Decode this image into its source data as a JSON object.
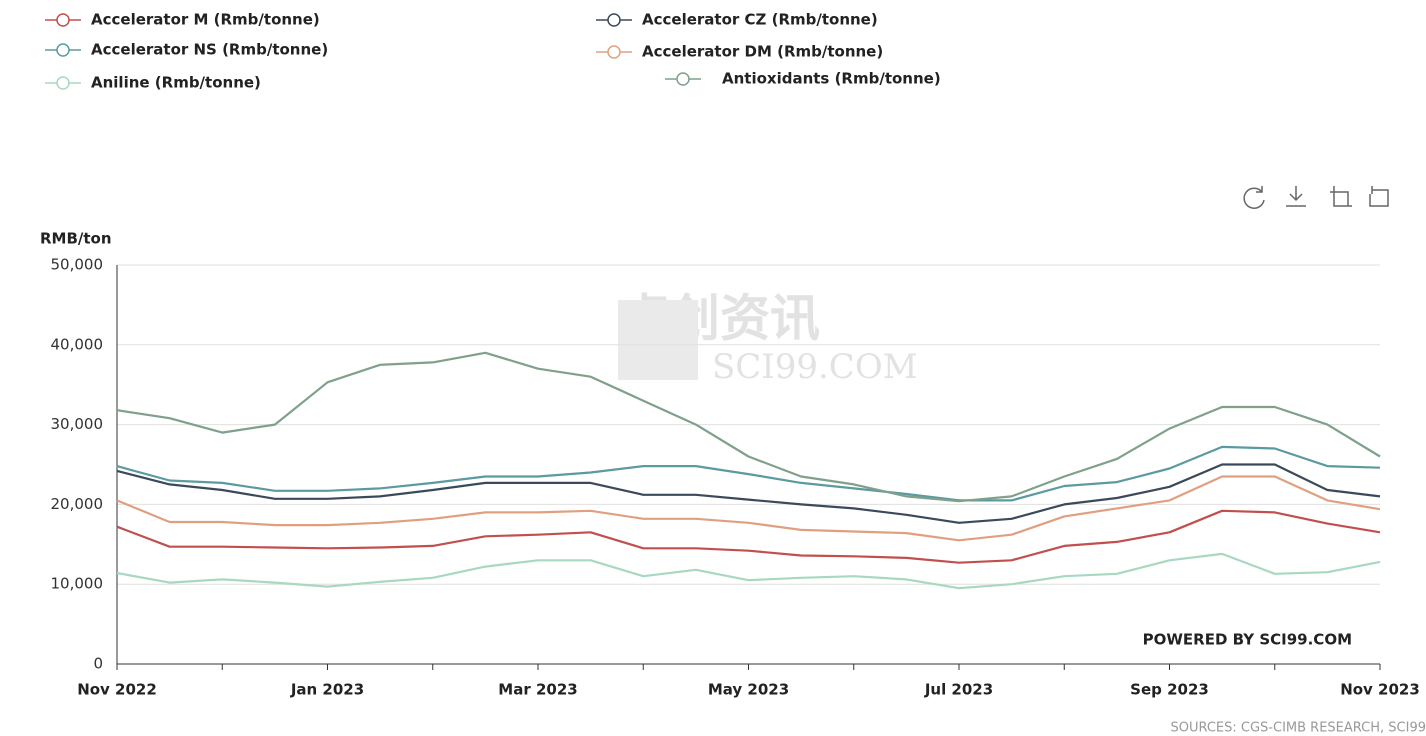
{
  "chart_data": {
    "type": "line",
    "y_label": "RMB/ton",
    "watermark": "卓创资讯",
    "watermark_sub": "SCI99.COM",
    "credit": "POWERED BY SCI99.COM",
    "source": "SOURCES: CGS-CIMB RESEARCH, SCI99",
    "categories": [
      "Nov 2022",
      null,
      null,
      null,
      "Jan 2023",
      null,
      null,
      null,
      "Mar 2023",
      null,
      null,
      null,
      "May 2023",
      null,
      null,
      null,
      "Jul 2023",
      null,
      null,
      null,
      "Sep 2023",
      null,
      null,
      null,
      "Nov 2023"
    ],
    "ylim": [
      0,
      50000
    ],
    "yticks": [
      0,
      {
        "value": 10000,
        "label": "10,000"
      },
      {
        "value": 20000,
        "label": "20,000"
      },
      {
        "value": 30000,
        "label": "30,000"
      },
      {
        "value": 40000,
        "label": "40,000"
      },
      {
        "value": 50000,
        "label": "50,000"
      }
    ],
    "grid": true,
    "series": [
      {
        "name": "Accelerator M (Rmb/tonne)",
        "color": "#c0504d",
        "values": [
          17200,
          14700,
          14700,
          14600,
          14500,
          14600,
          14800,
          16000,
          16200,
          16500,
          14500,
          14500,
          14200,
          13600,
          13500,
          13300,
          12700,
          13000,
          14800,
          15300,
          16500,
          19200,
          19000,
          17600,
          16500
        ]
      },
      {
        "name": "Accelerator CZ (Rmb/tonne)",
        "color": "#3b4a5a",
        "values": [
          24200,
          22500,
          21800,
          20700,
          20700,
          21000,
          21800,
          22700,
          22700,
          22700,
          21200,
          21200,
          20600,
          20000,
          19500,
          18700,
          17700,
          18200,
          20000,
          20800,
          22200,
          25000,
          25000,
          21800,
          21000
        ]
      },
      {
        "name": "Accelerator NS (Rmb/tonne)",
        "color": "#5b9aa0",
        "values": [
          24800,
          23000,
          22700,
          21700,
          21700,
          22000,
          22700,
          23500,
          23500,
          24000,
          24800,
          24800,
          23800,
          22700,
          22000,
          21300,
          20500,
          20500,
          22300,
          22800,
          24500,
          27200,
          27000,
          24800,
          24600
        ]
      },
      {
        "name": "Accelerator DM (Rmb/tonne)",
        "color": "#e0a080",
        "values": [
          20500,
          17800,
          17800,
          17400,
          17400,
          17700,
          18200,
          19000,
          19000,
          19200,
          18200,
          18200,
          17700,
          16800,
          16600,
          16400,
          15500,
          16200,
          18500,
          19500,
          20500,
          23500,
          23500,
          20500,
          19400
        ]
      },
      {
        "name": "Aniline (Rmb/tonne)",
        "color": "#a8d8c0",
        "values": [
          11400,
          10200,
          10600,
          10200,
          9700,
          10300,
          10800,
          12200,
          13000,
          13000,
          11000,
          11800,
          10500,
          10800,
          11000,
          10600,
          9500,
          10000,
          11000,
          11300,
          13000,
          13800,
          11300,
          11500,
          12800
        ]
      },
      {
        "name": "Antioxidants (Rmb/tonne)",
        "color": "#7fa08a",
        "values": [
          31800,
          30800,
          29000,
          30000,
          35300,
          37500,
          37800,
          39000,
          37000,
          36000,
          33000,
          30000,
          26000,
          23500,
          22500,
          21000,
          20400,
          21000,
          23500,
          25700,
          29500,
          32200,
          32200,
          30000,
          26000
        ]
      }
    ]
  }
}
